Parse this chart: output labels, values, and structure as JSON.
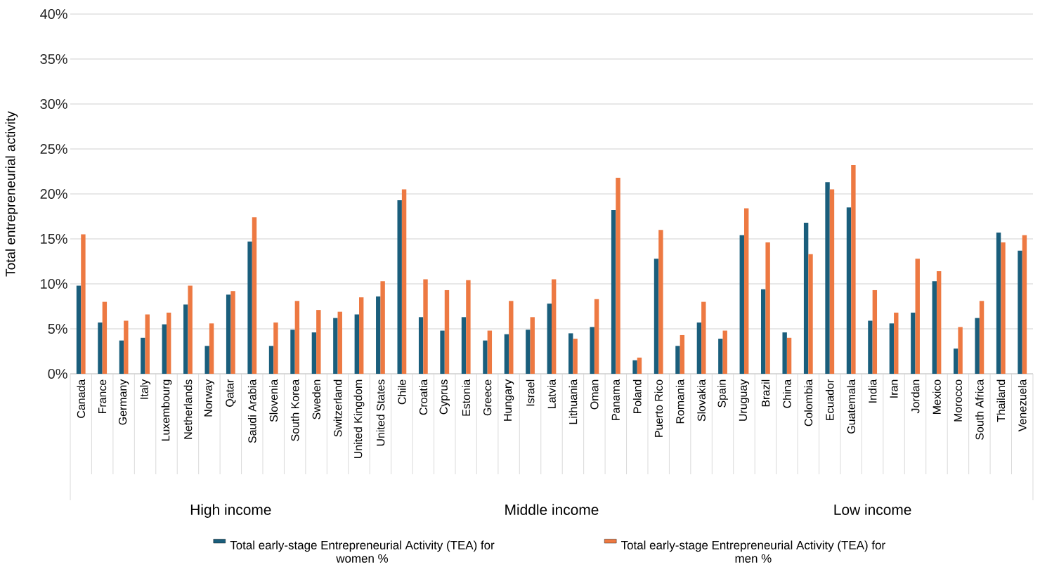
{
  "chart_data": {
    "type": "bar",
    "ylabel": "Total entrepreneurial activity",
    "categories": [
      "Canada",
      "France",
      "Germany",
      "Italy",
      "Luxembourg",
      "Netherlands",
      "Norway",
      "Qatar",
      "Saudi Arabia",
      "Slovenia",
      "South Korea",
      "Sweden",
      "Switzerland",
      "United Kingdom",
      "United States",
      "Chile",
      "Croatia",
      "Cyprus",
      "Estonia",
      "Greece",
      "Hungary",
      "Israel",
      "Latvia",
      "Lithuania",
      "Oman",
      "Panama",
      "Poland",
      "Puerto Rico",
      "Romania",
      "Slovakia",
      "Spain",
      "Uruguay",
      "Brazil",
      "China",
      "Colombia",
      "Ecuador",
      "Guatemala",
      "India",
      "Iran",
      "Jordan",
      "Mexico",
      "Morocco",
      "South Africa",
      "Thailand",
      "Venezuela"
    ],
    "series": [
      {
        "name": "Total early-stage Entrepreneurial Activity (TEA) for women %",
        "color": "#1a5e7c",
        "values": [
          9.8,
          5.7,
          3.7,
          4.0,
          5.5,
          7.7,
          3.1,
          8.8,
          14.7,
          3.1,
          4.9,
          4.6,
          6.2,
          6.6,
          8.6,
          19.3,
          6.3,
          4.8,
          6.3,
          3.7,
          4.4,
          4.9,
          7.8,
          4.5,
          5.2,
          18.2,
          1.5,
          12.8,
          3.1,
          5.7,
          3.9,
          15.4,
          9.4,
          4.6,
          16.8,
          21.3,
          18.5,
          5.9,
          5.6,
          6.8,
          10.3,
          2.8,
          6.2,
          15.7,
          13.7
        ]
      },
      {
        "name": "Total early-stage Entrepreneurial Activity (TEA) for men %",
        "color": "#ed7942",
        "values": [
          15.5,
          8.0,
          5.9,
          6.6,
          6.8,
          9.8,
          5.6,
          9.2,
          17.4,
          5.7,
          8.1,
          7.1,
          6.9,
          8.5,
          10.3,
          20.5,
          10.5,
          9.3,
          10.4,
          4.8,
          8.1,
          6.3,
          10.5,
          3.9,
          8.3,
          21.8,
          1.8,
          16.0,
          4.3,
          8.0,
          4.8,
          18.4,
          14.6,
          4.0,
          13.3,
          20.5,
          23.2,
          9.3,
          6.8,
          12.8,
          11.4,
          5.2,
          8.1,
          14.6,
          15.4
        ]
      }
    ],
    "annotations": [
      "High income",
      "Middle income",
      "Low income"
    ],
    "ylim": [
      0,
      40
    ],
    "yticks": [
      {
        "value": 0,
        "label": "0%"
      },
      {
        "value": 5,
        "label": "5%"
      },
      {
        "value": 10,
        "label": "10%"
      },
      {
        "value": 15,
        "label": "15%"
      },
      {
        "value": 20,
        "label": "20%"
      },
      {
        "value": 25,
        "label": "25%"
      },
      {
        "value": 30,
        "label": "30%"
      },
      {
        "value": 35,
        "label": "35%"
      },
      {
        "value": 40,
        "label": "40%"
      }
    ],
    "grid": "y",
    "legend": "bottom"
  }
}
